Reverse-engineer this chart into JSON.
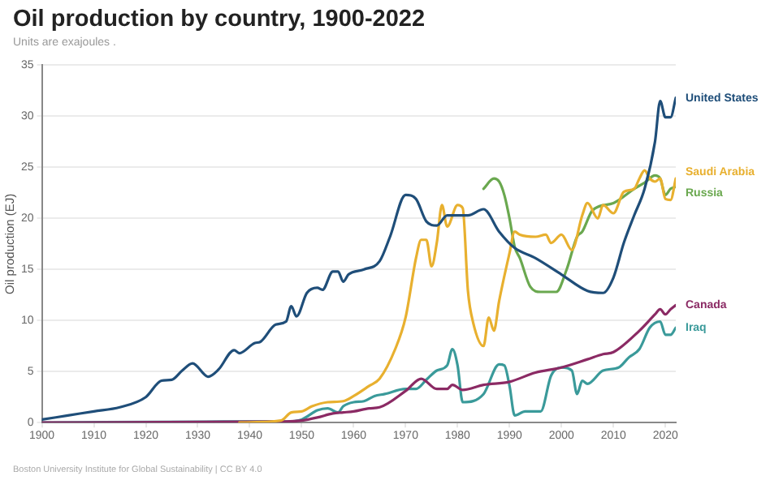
{
  "chart_data": {
    "type": "line",
    "title": "Oil production by country, 1900-2022",
    "subtitle": "Units are exajoules .",
    "ylabel": "Oil production (EJ)",
    "annotations": [
      "Boston University Institute for Global Sustainability | CC BY 4.0"
    ],
    "xlim": [
      1900,
      2022
    ],
    "xticks": [
      1900,
      1910,
      1920,
      1930,
      1940,
      1950,
      1960,
      1970,
      1980,
      1990,
      2000,
      2010,
      2020
    ],
    "ylim": [
      0,
      35
    ],
    "yticks": [
      0,
      5,
      10,
      15,
      20,
      25,
      30,
      35
    ],
    "grid": "y",
    "legend": false,
    "marker": "none",
    "line_style": "solid",
    "series": [
      {
        "name": "United States",
        "color": "#1f4e79",
        "x": [
          1900,
          1905,
          1910,
          1915,
          1920,
          1923,
          1925,
          1927,
          1929,
          1932,
          1934,
          1937,
          1938,
          1941,
          1942,
          1945,
          1947,
          1948,
          1949,
          1951,
          1953,
          1954,
          1956,
          1957,
          1958,
          1959,
          1962,
          1965,
          1967,
          1970,
          1972,
          1974,
          1976,
          1978,
          1982,
          1985,
          1988,
          1991,
          1995,
          2000,
          2005,
          2008,
          2010,
          2012,
          2014,
          2016,
          2018,
          2019,
          2020,
          2021,
          2022
        ],
        "values": [
          0.3,
          0.7,
          1.1,
          1.5,
          2.5,
          4.1,
          4.2,
          5.1,
          5.8,
          4.5,
          5.2,
          7.1,
          6.8,
          7.8,
          7.9,
          9.6,
          9.9,
          11.4,
          10.4,
          12.7,
          13.2,
          13.0,
          14.8,
          14.8,
          13.8,
          14.5,
          15.0,
          15.8,
          18.2,
          22.3,
          21.9,
          19.7,
          19.3,
          20.3,
          20.3,
          20.9,
          18.7,
          17.1,
          16.1,
          14.5,
          12.9,
          12.7,
          14.2,
          17.6,
          20.3,
          22.9,
          27.5,
          31.5,
          29.9,
          29.9,
          31.8
        ]
      },
      {
        "name": "Saudi Arabia",
        "color": "#e8b02f",
        "x": [
          1938,
          1946,
          1948,
          1950,
          1952,
          1955,
          1958,
          1960,
          1963,
          1965,
          1968,
          1970,
          1972,
          1973,
          1974,
          1975,
          1976,
          1977,
          1978,
          1980,
          1981,
          1982,
          1983,
          1985,
          1986,
          1987,
          1988,
          1990,
          1991,
          1992,
          1995,
          1997,
          1998,
          2000,
          2002,
          2004,
          2005,
          2007,
          2008,
          2010,
          2012,
          2014,
          2015,
          2016,
          2017,
          2018,
          2019,
          2020,
          2021,
          2022
        ],
        "values": [
          0.0,
          0.2,
          1.0,
          1.1,
          1.6,
          2.0,
          2.1,
          2.6,
          3.6,
          4.3,
          7.2,
          10.3,
          16.1,
          17.9,
          17.9,
          15.3,
          17.6,
          21.3,
          19.2,
          21.3,
          21.0,
          12.9,
          9.8,
          7.5,
          10.3,
          9.0,
          11.9,
          16.6,
          18.7,
          18.4,
          18.2,
          18.4,
          17.6,
          18.4,
          16.9,
          20.3,
          21.5,
          20.0,
          21.3,
          20.5,
          22.6,
          22.9,
          23.9,
          24.7,
          23.9,
          23.6,
          23.9,
          21.9,
          21.8,
          23.9
        ]
      },
      {
        "name": "Russia",
        "color": "#6aa84f",
        "x": [
          1985,
          1987,
          1988,
          1989,
          1990,
          1991,
          1992,
          1994,
          1996,
          1999,
          2001,
          2003,
          2004,
          2006,
          2010,
          2014,
          2016,
          2018,
          2019,
          2020,
          2021,
          2022
        ],
        "values": [
          22.9,
          23.9,
          23.6,
          22.3,
          20.0,
          17.2,
          16.1,
          13.3,
          12.8,
          12.8,
          15.0,
          18.2,
          18.7,
          20.8,
          21.5,
          22.9,
          23.5,
          24.2,
          23.9,
          22.3,
          22.9,
          23.1
        ]
      },
      {
        "name": "Canada",
        "color": "#8b2a64",
        "x": [
          1900,
          1947,
          1950,
          1953,
          1956,
          1958,
          1960,
          1963,
          1965,
          1970,
          1973,
          1976,
          1978,
          1979,
          1981,
          1985,
          1990,
          1995,
          2000,
          2005,
          2008,
          2010,
          2015,
          2018,
          2019,
          2020,
          2021,
          2022
        ],
        "values": [
          0.0,
          0.1,
          0.2,
          0.5,
          0.9,
          1.0,
          1.1,
          1.4,
          1.5,
          3.1,
          4.3,
          3.3,
          3.3,
          3.7,
          3.2,
          3.7,
          4.0,
          4.9,
          5.4,
          6.2,
          6.7,
          6.9,
          9.0,
          10.6,
          11.1,
          10.6,
          11.1,
          11.5
        ]
      },
      {
        "name": "Iraq",
        "color": "#3a9a9a",
        "x": [
          1900,
          1935,
          1940,
          1947,
          1950,
          1953,
          1955,
          1957,
          1958,
          1960,
          1962,
          1964,
          1966,
          1970,
          1972,
          1974,
          1976,
          1978,
          1979,
          1980,
          1981,
          1985,
          1988,
          1989,
          1990,
          1991,
          1993,
          1996,
          1998,
          2000,
          2002,
          2003,
          2004,
          2005,
          2008,
          2011,
          2013,
          2015,
          2017,
          2019,
          2020,
          2021,
          2022
        ],
        "values": [
          0.0,
          0.1,
          0.1,
          0.1,
          0.3,
          1.2,
          1.4,
          1.0,
          1.6,
          2.0,
          2.1,
          2.6,
          2.8,
          3.3,
          3.3,
          4.2,
          5.1,
          5.6,
          7.2,
          5.6,
          2.0,
          2.8,
          5.7,
          5.6,
          3.6,
          0.7,
          1.1,
          1.1,
          4.6,
          5.4,
          5.1,
          2.8,
          4.1,
          3.8,
          5.1,
          5.4,
          6.4,
          7.2,
          9.3,
          9.9,
          8.6,
          8.6,
          9.3
        ]
      }
    ]
  }
}
